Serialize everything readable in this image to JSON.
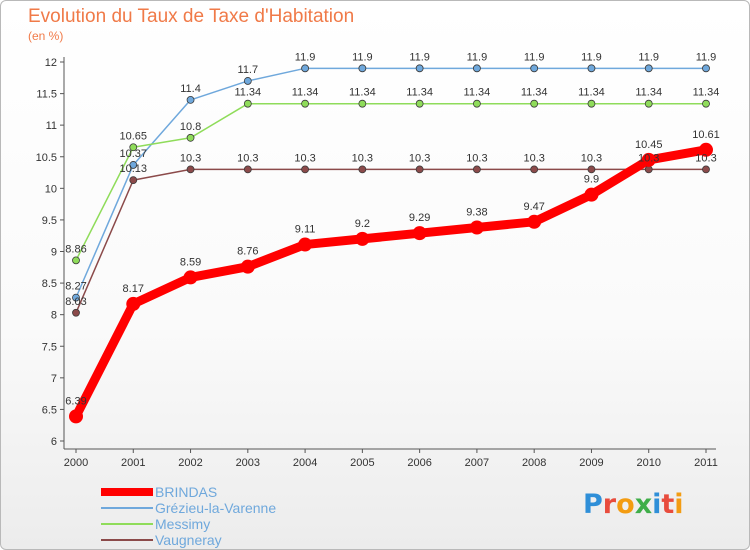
{
  "chart_data": {
    "type": "line",
    "title": "Evolution du Taux de Taxe d'Habitation",
    "subtitle": "(en %)",
    "x": [
      "2000",
      "2001",
      "2002",
      "2003",
      "2004",
      "2005",
      "2006",
      "2007",
      "2008",
      "2009",
      "2010",
      "2011"
    ],
    "ylim": [
      6,
      12
    ],
    "yticks": [
      "6",
      "6.5",
      "7",
      "7.5",
      "8",
      "8.5",
      "9",
      "9.5",
      "10",
      "10.5",
      "11",
      "11.5",
      "12"
    ],
    "grid": false,
    "legend_position": "bottom-left",
    "series": [
      {
        "name": "BRINDAS",
        "color": "#ff0000",
        "values": [
          6.39,
          8.17,
          8.59,
          8.76,
          9.11,
          9.2,
          9.29,
          9.38,
          9.47,
          9.9,
          10.45,
          10.61
        ],
        "labels": [
          "6.39",
          "8.17",
          "8.59",
          "8.76",
          "9.11",
          "9.2",
          "9.29",
          "9.38",
          "9.47",
          "9.9",
          "10.45",
          "10.61"
        ]
      },
      {
        "name": "Grézieu-la-Varenne",
        "color": "#6fa8dc",
        "values": [
          8.27,
          10.37,
          11.4,
          11.7,
          11.9,
          11.9,
          11.9,
          11.9,
          11.9,
          11.9,
          11.9,
          11.9
        ],
        "labels": [
          "8.27",
          "10.37",
          "11.4",
          "11.7",
          "11.9",
          "11.9",
          "11.9",
          "11.9",
          "11.9",
          "11.9",
          "11.9",
          "11.9"
        ]
      },
      {
        "name": "Messimy",
        "color": "#8fdc5a",
        "values": [
          8.86,
          10.65,
          10.8,
          11.34,
          11.34,
          11.34,
          11.34,
          11.34,
          11.34,
          11.34,
          11.34,
          11.34
        ],
        "labels": [
          "8.86",
          "10.65",
          "10.8",
          "11.34",
          "11.34",
          "11.34",
          "11.34",
          "11.34",
          "11.34",
          "11.34",
          "11.34",
          "11.34"
        ]
      },
      {
        "name": "Vaugneray",
        "color": "#8b4a4a",
        "values": [
          8.03,
          10.13,
          10.3,
          10.3,
          10.3,
          10.3,
          10.3,
          10.3,
          10.3,
          10.3,
          10.3,
          10.3
        ],
        "labels": [
          "8.03",
          "10.13",
          "10.3",
          "10.3",
          "10.3",
          "10.3",
          "10.3",
          "10.3",
          "10.3",
          "10.3",
          "10.3",
          "10.3"
        ]
      }
    ]
  },
  "logo": {
    "text": "Proxiti",
    "letters": [
      {
        "ch": "P",
        "color": "#2f8fd8"
      },
      {
        "ch": "r",
        "color": "#e84c3d"
      },
      {
        "ch": "o",
        "color": "#f39c12"
      },
      {
        "ch": "x",
        "color": "#3fae49"
      },
      {
        "ch": "i",
        "color": "#2f8fd8"
      },
      {
        "ch": "t",
        "color": "#e84c3d"
      },
      {
        "ch": "i",
        "color": "#f39c12"
      }
    ]
  }
}
